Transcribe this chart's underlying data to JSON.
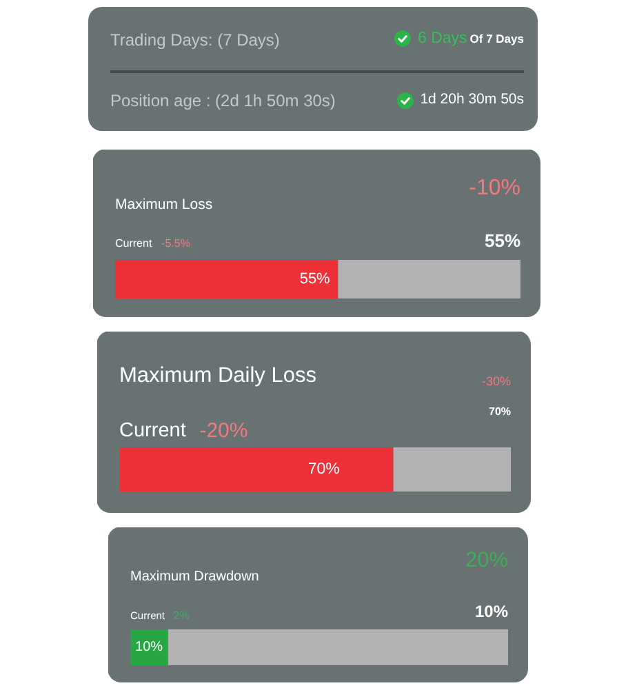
{
  "chart_data": [
    {
      "type": "other",
      "annotations": [
        "Trading Days: (7 Days)",
        "6 Days",
        "Of 7 Days",
        "Position age : (2d 1h 50m 30s)",
        "1d 20h 30m 50s"
      ]
    },
    {
      "type": "bar",
      "orientation": "horizontal",
      "stacked": true,
      "title": "Maximum Loss",
      "categories": [
        null
      ],
      "series": [
        {
          "color": "#ee3139",
          "values": [
            55
          ],
          "value_labels": [
            "55%"
          ]
        },
        {
          "color": "#b2b2b2",
          "values": [
            45
          ]
        }
      ],
      "xlim": [
        0,
        100
      ],
      "tick_labels": false,
      "annotations": [
        "-10%",
        "Current",
        "-5.5%",
        "55%"
      ]
    },
    {
      "type": "bar",
      "orientation": "horizontal",
      "stacked": true,
      "title": "Maximum Daily Loss",
      "categories": [
        null
      ],
      "series": [
        {
          "color": "#ee3139",
          "values": [
            70
          ],
          "value_labels": [
            "70%"
          ]
        },
        {
          "color": "#b2b2b2",
          "values": [
            30
          ]
        }
      ],
      "xlim": [
        0,
        100
      ],
      "tick_labels": false,
      "annotations": [
        "-30%",
        "Current",
        "-20%",
        "70%"
      ]
    },
    {
      "type": "bar",
      "orientation": "horizontal",
      "stacked": true,
      "title": "Maximum Drawdown",
      "categories": [
        null
      ],
      "series": [
        {
          "color": "#27a744",
          "values": [
            10
          ],
          "value_labels": [
            "10%"
          ]
        },
        {
          "color": "#b2b2b2",
          "values": [
            90
          ]
        }
      ],
      "xlim": [
        0,
        100
      ],
      "tick_labels": false,
      "annotations": [
        "20%",
        "Current",
        "2%",
        "10%"
      ]
    }
  ]
}
